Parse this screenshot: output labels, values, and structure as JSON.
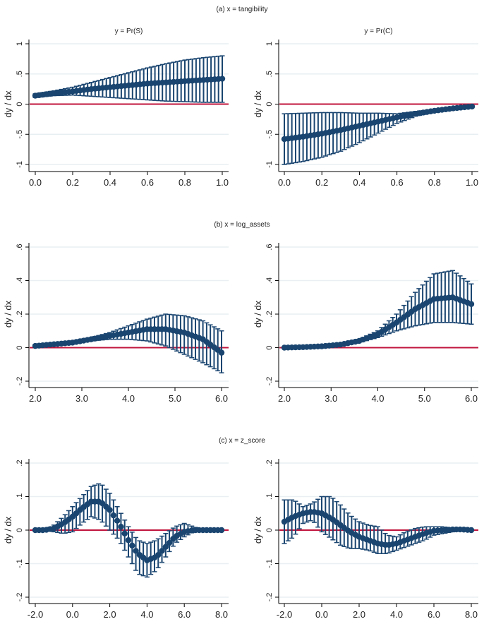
{
  "chart_data": [
    {
      "type": "scatter",
      "id": "a-left",
      "row_title": "(a) x = tangibility",
      "title": "y = Pr(S)",
      "xlabel": "",
      "ylabel": "dy / dx",
      "xlim": [
        0,
        1
      ],
      "ylim": [
        -1,
        1
      ],
      "xticks": [
        0,
        0.2,
        0.4,
        0.6,
        0.8,
        1.0
      ],
      "xtick_labels": [
        "0.0",
        "0.2",
        "0.4",
        "0.6",
        "0.8",
        "1.0"
      ],
      "yticks": [
        -1,
        -0.5,
        0,
        0.5,
        1
      ],
      "ytick_labels": [
        "-1",
        "-.5",
        "0",
        ".5",
        "1"
      ],
      "reference_line": 0,
      "n_points": 51,
      "x": [
        0,
        0.1,
        0.2,
        0.3,
        0.4,
        0.5,
        0.6,
        0.7,
        0.8,
        0.9,
        1.0
      ],
      "y": [
        0.14,
        0.18,
        0.21,
        0.25,
        0.28,
        0.31,
        0.34,
        0.36,
        0.38,
        0.4,
        0.42
      ],
      "ci_low": [
        0.11,
        0.14,
        0.15,
        0.13,
        0.11,
        0.09,
        0.07,
        0.05,
        0.04,
        0.03,
        0.03
      ],
      "ci_high": [
        0.17,
        0.22,
        0.28,
        0.36,
        0.44,
        0.52,
        0.6,
        0.67,
        0.73,
        0.77,
        0.8
      ]
    },
    {
      "type": "scatter",
      "id": "a-right",
      "title": "y = Pr(C)",
      "xlabel": "",
      "ylabel": "dy / dx",
      "xlim": [
        0,
        1
      ],
      "ylim": [
        -1,
        1
      ],
      "xticks": [
        0,
        0.2,
        0.4,
        0.6,
        0.8,
        1.0
      ],
      "xtick_labels": [
        "0.0",
        "0.2",
        "0.4",
        "0.6",
        "0.8",
        "1.0"
      ],
      "yticks": [
        -1,
        -0.5,
        0,
        0.5,
        1
      ],
      "ytick_labels": [
        "-1",
        "-.5",
        "0",
        ".5",
        "1"
      ],
      "reference_line": 0,
      "n_points": 51,
      "x": [
        0,
        0.1,
        0.2,
        0.3,
        0.4,
        0.5,
        0.6,
        0.7,
        0.8,
        0.9,
        1.0
      ],
      "y": [
        -0.58,
        -0.54,
        -0.49,
        -0.43,
        -0.36,
        -0.29,
        -0.22,
        -0.16,
        -0.11,
        -0.07,
        -0.04
      ],
      "ci_low": [
        -1.0,
        -0.95,
        -0.88,
        -0.78,
        -0.64,
        -0.48,
        -0.32,
        -0.2,
        -0.13,
        -0.09,
        -0.06
      ],
      "ci_high": [
        -0.16,
        -0.15,
        -0.14,
        -0.14,
        -0.15,
        -0.15,
        -0.16,
        -0.12,
        -0.09,
        -0.06,
        -0.03
      ]
    },
    {
      "type": "scatter",
      "id": "b-left",
      "row_title": "(b) x = log_assets",
      "title": "",
      "xlabel": "",
      "ylabel": "dy / dx",
      "xlim": [
        2,
        6
      ],
      "ylim": [
        -0.2,
        0.6
      ],
      "xticks": [
        2,
        3,
        4,
        5,
        6
      ],
      "xtick_labels": [
        "2.0",
        "3.0",
        "4.0",
        "5.0",
        "6.0"
      ],
      "yticks": [
        -0.2,
        0,
        0.2,
        0.4,
        0.6
      ],
      "ytick_labels": [
        "-.2",
        "0",
        ".2",
        ".4",
        ".6"
      ],
      "reference_line": 0,
      "n_points": 51,
      "x": [
        2.0,
        2.4,
        2.8,
        3.2,
        3.6,
        4.0,
        4.4,
        4.8,
        5.2,
        5.6,
        6.0
      ],
      "y": [
        0.01,
        0.02,
        0.03,
        0.05,
        0.07,
        0.09,
        0.11,
        0.11,
        0.09,
        0.05,
        -0.03
      ],
      "ci_low": [
        0.01,
        0.02,
        0.03,
        0.04,
        0.05,
        0.05,
        0.04,
        0.01,
        -0.04,
        -0.09,
        -0.15
      ],
      "ci_high": [
        0.02,
        0.03,
        0.04,
        0.06,
        0.09,
        0.13,
        0.17,
        0.2,
        0.19,
        0.16,
        0.1
      ]
    },
    {
      "type": "scatter",
      "id": "b-right",
      "title": "",
      "xlabel": "",
      "ylabel": "dy / dx",
      "xlim": [
        2,
        6
      ],
      "ylim": [
        -0.2,
        0.6
      ],
      "xticks": [
        2,
        3,
        4,
        5,
        6
      ],
      "xtick_labels": [
        "2.0",
        "3.0",
        "4.0",
        "5.0",
        "6.0"
      ],
      "yticks": [
        -0.2,
        0,
        0.2,
        0.4,
        0.6
      ],
      "ytick_labels": [
        "-.2",
        "0",
        ".2",
        ".4",
        ".6"
      ],
      "reference_line": 0,
      "n_points": 51,
      "x": [
        2.0,
        2.4,
        2.8,
        3.2,
        3.6,
        4.0,
        4.4,
        4.8,
        5.2,
        5.6,
        6.0
      ],
      "y": [
        0.0,
        0.003,
        0.008,
        0.018,
        0.04,
        0.08,
        0.15,
        0.23,
        0.29,
        0.3,
        0.26
      ],
      "ci_low": [
        0.0,
        0.002,
        0.006,
        0.014,
        0.03,
        0.06,
        0.1,
        0.13,
        0.15,
        0.15,
        0.14
      ],
      "ci_high": [
        0.0,
        0.004,
        0.01,
        0.022,
        0.05,
        0.1,
        0.2,
        0.33,
        0.44,
        0.46,
        0.38
      ]
    },
    {
      "type": "scatter",
      "id": "c-left",
      "row_title": "(c) x = z_score",
      "title": "",
      "xlabel": "",
      "ylabel": "dy / dx",
      "xlim": [
        -2,
        8
      ],
      "ylim": [
        -0.2,
        0.2
      ],
      "xticks": [
        -2,
        0,
        2,
        4,
        6,
        8
      ],
      "xtick_labels": [
        "-2.0",
        "0.0",
        "2.0",
        "4.0",
        "6.0",
        "8.0"
      ],
      "yticks": [
        -0.2,
        -0.1,
        0,
        0.1,
        0.2
      ],
      "ytick_labels": [
        "-.2",
        "-.1",
        "0",
        ".1",
        ".2"
      ],
      "reference_line": 0,
      "n_points": 51,
      "x": [
        -2,
        -1.5,
        -1,
        -0.5,
        0,
        0.5,
        1,
        1.5,
        2,
        2.5,
        3,
        3.5,
        4,
        4.5,
        5,
        5.5,
        6,
        6.5,
        7,
        7.5,
        8
      ],
      "y": [
        0,
        0,
        0.005,
        0.02,
        0.04,
        0.065,
        0.085,
        0.085,
        0.06,
        0.02,
        -0.03,
        -0.07,
        -0.09,
        -0.08,
        -0.05,
        -0.02,
        -0.005,
        0,
        0,
        0,
        0
      ],
      "ci_low": [
        0,
        0,
        -0.005,
        -0.01,
        -0.005,
        0.02,
        0.04,
        0.03,
        0,
        -0.03,
        -0.08,
        -0.13,
        -0.14,
        -0.12,
        -0.08,
        -0.04,
        -0.02,
        -0.005,
        0,
        0,
        0
      ],
      "ci_high": [
        0,
        0,
        0.015,
        0.04,
        0.07,
        0.1,
        0.13,
        0.14,
        0.11,
        0.06,
        0.01,
        -0.03,
        -0.04,
        -0.03,
        -0.01,
        0.01,
        0.02,
        0.01,
        0,
        0,
        0
      ]
    },
    {
      "type": "scatter",
      "id": "c-right",
      "title": "",
      "xlabel": "",
      "ylabel": "dy / dx",
      "xlim": [
        -2,
        8
      ],
      "ylim": [
        -0.2,
        0.2
      ],
      "xticks": [
        -2,
        0,
        2,
        4,
        6,
        8
      ],
      "xtick_labels": [
        "-2.0",
        "0.0",
        "2.0",
        "4.0",
        "6.0",
        "8.0"
      ],
      "yticks": [
        -0.2,
        -0.1,
        0,
        0.1,
        0.2
      ],
      "ytick_labels": [
        "-.2",
        "-.1",
        "0",
        ".1",
        ".2"
      ],
      "reference_line": 0,
      "n_points": 51,
      "x": [
        -2,
        -1.5,
        -1,
        -0.5,
        0,
        0.5,
        1,
        1.5,
        2,
        2.5,
        3,
        3.5,
        4,
        4.5,
        5,
        5.5,
        6,
        6.5,
        7,
        7.5,
        8
      ],
      "y": [
        0.025,
        0.04,
        0.05,
        0.055,
        0.05,
        0.035,
        0.015,
        -0.005,
        -0.02,
        -0.03,
        -0.04,
        -0.045,
        -0.04,
        -0.03,
        -0.02,
        -0.01,
        -0.002,
        0,
        0.002,
        0.002,
        0
      ],
      "ci_low": [
        -0.04,
        -0.02,
        0.02,
        0.03,
        -0.005,
        -0.025,
        -0.045,
        -0.055,
        -0.055,
        -0.06,
        -0.07,
        -0.07,
        -0.06,
        -0.05,
        -0.04,
        -0.03,
        -0.015,
        -0.01,
        -0.005,
        -0.002,
        0
      ],
      "ci_high": [
        0.09,
        0.09,
        0.07,
        0.08,
        0.1,
        0.1,
        0.075,
        0.045,
        0.025,
        0.015,
        0.01,
        -0.015,
        -0.02,
        -0.005,
        0.005,
        0.01,
        0.01,
        0.01,
        0.005,
        0.004,
        0
      ]
    }
  ],
  "colors": {
    "marker": "#1a4570",
    "reference_line": "#c0143c",
    "gridline": "#e8eff2",
    "axis": "#000000"
  }
}
